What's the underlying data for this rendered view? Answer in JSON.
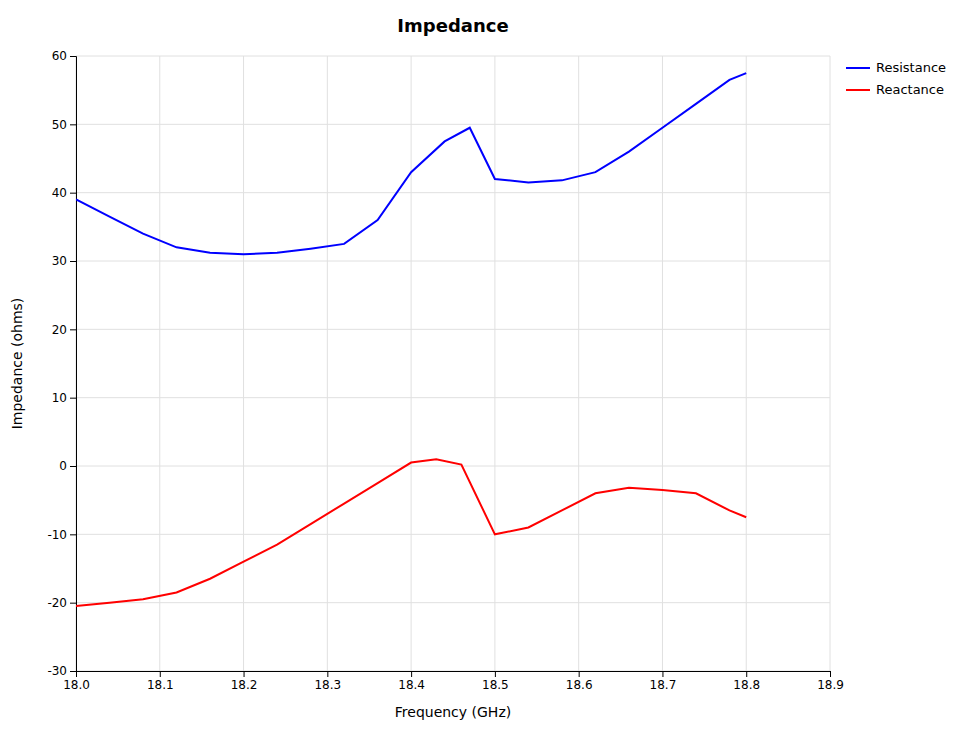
{
  "chart_data": {
    "type": "line",
    "title": "Impedance",
    "x_label": "Frequency (GHz)",
    "y_label": "Impedance (ohms)",
    "xlim": [
      18.0,
      18.9
    ],
    "ylim": [
      -30,
      60
    ],
    "xticks": [
      {
        "value": 18.0,
        "label": "18.0"
      },
      18.1,
      18.2,
      18.3,
      18.4,
      18.5,
      18.6,
      18.7,
      18.8,
      18.9
    ],
    "yticks": [
      -30,
      -20,
      -10,
      0,
      10,
      20,
      30,
      40,
      50,
      60
    ],
    "grid": true,
    "legend": "upper right",
    "series": [
      {
        "name": "Resistance",
        "color": "#0000ff",
        "x": [
          18.0,
          18.04,
          18.08,
          18.12,
          18.16,
          18.2,
          18.24,
          18.28,
          18.32,
          18.36,
          18.4,
          18.44,
          18.47,
          18.5,
          18.54,
          18.58,
          18.62,
          18.66,
          18.7,
          18.74,
          18.78,
          18.8
        ],
        "values": [
          39.0,
          36.5,
          34.0,
          32.0,
          31.2,
          31.0,
          31.2,
          31.8,
          32.5,
          36.0,
          43.0,
          47.5,
          49.5,
          42.0,
          41.5,
          41.8,
          43.0,
          46.0,
          49.5,
          53.0,
          56.5,
          57.5
        ]
      },
      {
        "name": "Reactance",
        "color": "#ff0000",
        "x": [
          18.0,
          18.04,
          18.08,
          18.12,
          18.16,
          18.2,
          18.24,
          18.28,
          18.32,
          18.36,
          18.4,
          18.43,
          18.46,
          18.5,
          18.54,
          18.58,
          18.62,
          18.66,
          18.7,
          18.74,
          18.78,
          18.8
        ],
        "values": [
          -20.5,
          -20.0,
          -19.5,
          -18.5,
          -16.5,
          -14.0,
          -11.5,
          -8.5,
          -5.5,
          -2.5,
          0.5,
          1.0,
          0.2,
          -10.0,
          -9.0,
          -6.5,
          -4.0,
          -3.2,
          -3.5,
          -4.0,
          -6.5,
          -7.5
        ]
      }
    ]
  }
}
